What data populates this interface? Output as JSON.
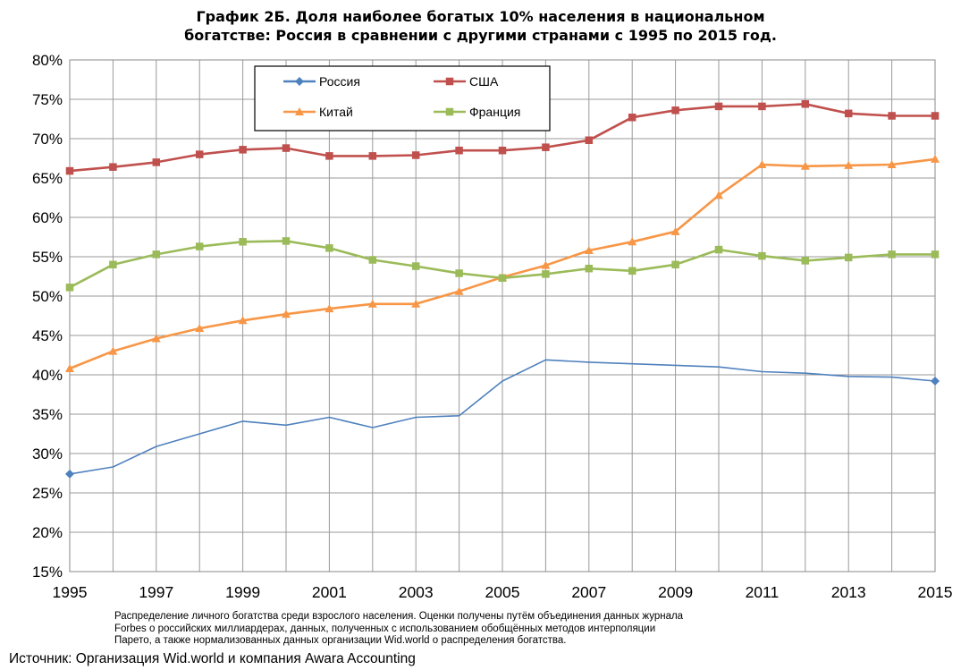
{
  "title_lines": [
    "График 2Б. Доля наиболее богатых 10% населения в национальном",
    "богатстве: Россия в сравнении с другими странами с 1995 по 2015 год."
  ],
  "note_lines": [
    "Распределение личного богатства среди взрослого населения. Оценки получены путём объединения данных журнала",
    "Forbes о российских миллиардерах, данных, полученных с использованием обобщённых методов интерполяции",
    "Парето, а также нормализованных данных организации Wid.world о распределения богатства."
  ],
  "source": "Источник: Организация Wid.world и компания Awara Accounting",
  "chart_data": {
    "type": "line",
    "title": "График 2Б. Доля наиболее богатых 10% населения в национальном богатстве: Россия в сравнении с другими странами с 1995 по 2015 год.",
    "xlabel": "",
    "ylabel": "",
    "x": [
      1995,
      1996,
      1997,
      1998,
      1999,
      2000,
      2001,
      2002,
      2003,
      2004,
      2005,
      2006,
      2007,
      2008,
      2009,
      2010,
      2011,
      2012,
      2013,
      2014,
      2015
    ],
    "x_tick_labels": [
      "1995",
      "1997",
      "1999",
      "2001",
      "2003",
      "2005",
      "2007",
      "2009",
      "2011",
      "2013",
      "2015"
    ],
    "y_tick_labels": [
      "80%",
      "75%",
      "70%",
      "65%",
      "60%",
      "55%",
      "50%",
      "45%",
      "40%",
      "35%",
      "30%",
      "25%",
      "20%",
      "15%"
    ],
    "xlim": [
      1995,
      2015
    ],
    "ylim": [
      15,
      80
    ],
    "y_unit": "%",
    "grid": true,
    "legend_position": "top",
    "series": [
      {
        "name": "Россия",
        "color": "#4F81BD",
        "marker": "diamond",
        "marker_mode": "endpoints",
        "values": [
          27.4,
          28.3,
          30.9,
          32.5,
          34.1,
          33.6,
          34.6,
          33.3,
          34.6,
          34.8,
          39.2,
          41.9,
          41.6,
          41.4,
          41.2,
          41.0,
          40.4,
          40.2,
          39.8,
          39.7,
          39.2
        ]
      },
      {
        "name": "США",
        "color": "#C0504D",
        "marker": "square",
        "marker_mode": "all",
        "values": [
          65.9,
          66.4,
          67.0,
          68.0,
          68.6,
          68.8,
          67.8,
          67.8,
          67.9,
          68.5,
          68.5,
          68.9,
          69.8,
          72.7,
          73.6,
          74.1,
          74.1,
          74.4,
          73.2,
          72.9,
          72.9
        ]
      },
      {
        "name": "Китай",
        "color": "#F79646",
        "marker": "triangle",
        "marker_mode": "all",
        "values": [
          40.8,
          43.0,
          44.6,
          45.9,
          46.9,
          47.7,
          48.4,
          49.0,
          49.0,
          50.6,
          52.4,
          53.9,
          55.8,
          56.9,
          58.2,
          62.8,
          66.7,
          66.5,
          66.6,
          66.7,
          67.4
        ]
      },
      {
        "name": "Франция",
        "color": "#9BBB59",
        "marker": "square",
        "marker_mode": "all",
        "values": [
          51.1,
          54.0,
          55.3,
          56.3,
          56.9,
          57.0,
          56.1,
          54.6,
          53.8,
          52.9,
          52.3,
          52.8,
          53.5,
          53.2,
          54.0,
          55.9,
          55.1,
          54.5,
          54.9,
          55.3,
          55.3
        ]
      }
    ]
  }
}
